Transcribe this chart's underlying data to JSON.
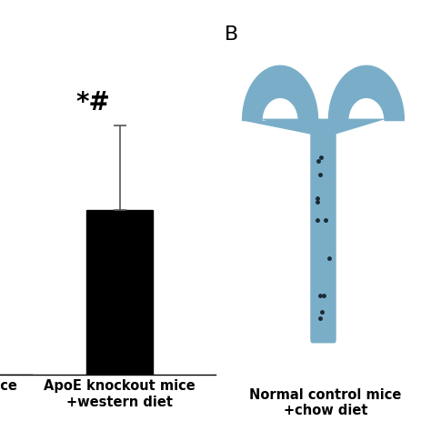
{
  "bar_value": 35,
  "bar_error_up": 18,
  "bar_color": "#000000",
  "annotation": "*#",
  "ylim": [
    0,
    75
  ],
  "background_color": "#ffffff",
  "label_B": "B",
  "panel_B_label_bottom": "Normal control mice\n+chow diet",
  "left_label_bottom": "mice",
  "right_bar_label": "ApoE knockout mice\n+western diet",
  "bar_width": 0.55,
  "annotation_fontsize": 20,
  "tick_label_fontsize": 10.5,
  "b_label_fontsize": 16,
  "error_color": "#555555",
  "capsize": 5,
  "aorta_color": "#7aaec8",
  "aorta_dark": "#5a8eaa",
  "panel_B_bg": "#000000"
}
